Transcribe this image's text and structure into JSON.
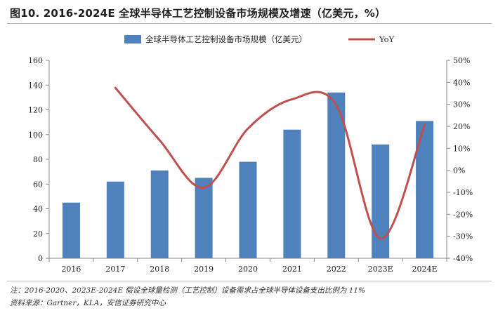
{
  "title": "图10. 2016-2024E 全球半导体工艺控制设备市场规模及增速（亿美元，%）",
  "note": "注：2016-2020、2023E-2024E 假设全球量检测（工艺控制）设备需求占全球半导体设备支出比例为 11%",
  "source": "资料来源：Gartner，KLA，安信证券研究中心",
  "colors": {
    "bar": "#4f81bd",
    "line": "#c0504d",
    "axis": "#888888"
  },
  "chart_data": {
    "type": "bar+line",
    "categories": [
      "2016",
      "2017",
      "2018",
      "2019",
      "2020",
      "2021",
      "2022",
      "2023E",
      "2024E"
    ],
    "series": [
      {
        "name": "全球半导体工艺控制设备市场规模（亿美元）",
        "kind": "bar",
        "axis": "left",
        "values": [
          45,
          62,
          71,
          65,
          78,
          104,
          134,
          92,
          111
        ]
      },
      {
        "name": "YoY",
        "kind": "line",
        "axis": "right",
        "values": [
          null,
          37.5,
          13.7,
          -7.9,
          19.0,
          32.3,
          29.6,
          -31.0,
          20.7
        ]
      }
    ],
    "y_left": {
      "min": 0,
      "max": 160,
      "step": 20,
      "ticks": [
        "0",
        "20",
        "40",
        "60",
        "80",
        "100",
        "120",
        "140",
        "160"
      ]
    },
    "y_right": {
      "min": -40,
      "max": 50,
      "step": 10,
      "ticks": [
        "-40%",
        "-30%",
        "-20%",
        "-10%",
        "0%",
        "10%",
        "20%",
        "30%",
        "40%",
        "50%"
      ]
    },
    "legend": [
      "全球半导体工艺控制设备市场规模（亿美元）",
      "YoY"
    ],
    "legend_position": "top-center",
    "grid": false
  }
}
